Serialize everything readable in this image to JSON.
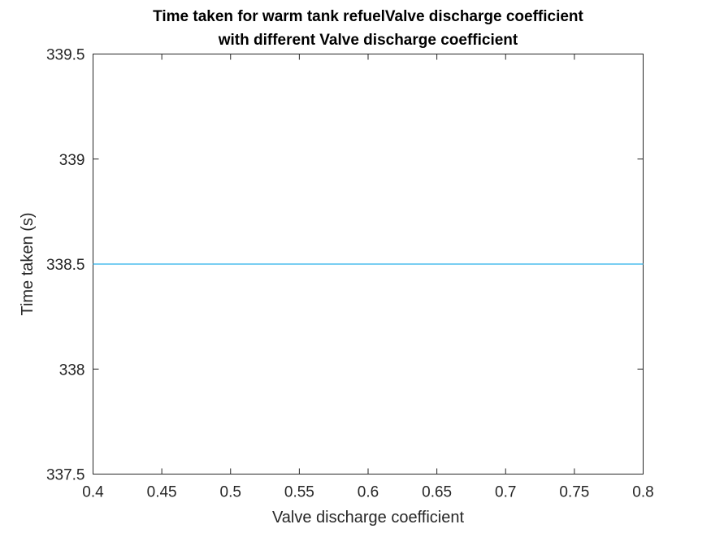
{
  "chart_data": {
    "type": "line",
    "title": [
      "Time taken for warm tank refuelValve discharge coefficient",
      "with different Valve discharge coefficient"
    ],
    "xlabel": "Valve discharge coefficient",
    "ylabel": "Time taken (s)",
    "xlim": [
      0.4,
      0.8
    ],
    "ylim": [
      337.5,
      339.5
    ],
    "xticks": [
      0.4,
      0.45,
      0.5,
      0.55,
      0.6,
      0.65,
      0.7,
      0.75,
      0.8
    ],
    "yticks": [
      337.5,
      338,
      338.5,
      339,
      339.5
    ],
    "xtick_labels": [
      "0.4",
      "0.45",
      "0.5",
      "0.55",
      "0.6",
      "0.65",
      "0.7",
      "0.75",
      "0.8"
    ],
    "ytick_labels": [
      "337.5",
      "338",
      "338.5",
      "339",
      "339.5"
    ],
    "grid": false,
    "series": [
      {
        "x": [
          0.4,
          0.8
        ],
        "y": [
          338.5,
          338.5
        ],
        "color": "#4DBEEE"
      }
    ]
  }
}
